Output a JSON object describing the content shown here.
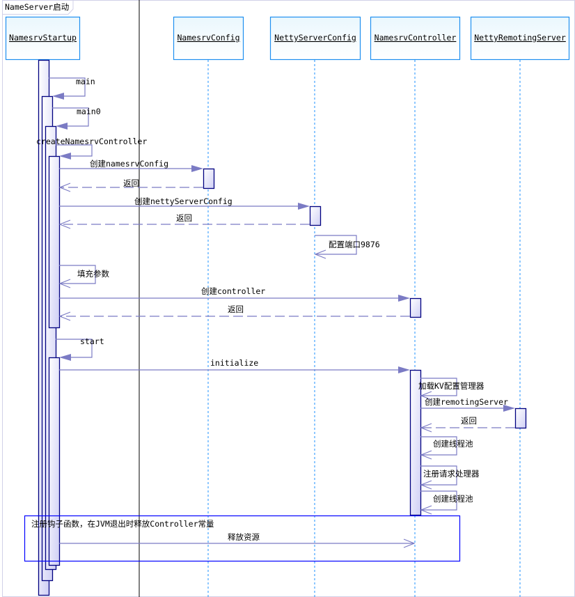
{
  "frame": {
    "title": "NameServer启动"
  },
  "participants": [
    {
      "name": "NamesrvStartup"
    },
    {
      "name": "NamesrvConfig"
    },
    {
      "name": "NettyServerConfig"
    },
    {
      "name": "NamesrvController"
    },
    {
      "name": "NettyRemotingServer"
    }
  ],
  "messages": [
    {
      "label": "main",
      "from": "NamesrvStartup",
      "to": "NamesrvStartup",
      "kind": "call"
    },
    {
      "label": "main0",
      "from": "NamesrvStartup",
      "to": "NamesrvStartup",
      "kind": "call"
    },
    {
      "label": "createNamesrvController",
      "from": "NamesrvStartup",
      "to": "NamesrvStartup",
      "kind": "call"
    },
    {
      "label": "创建namesrvConfig",
      "from": "NamesrvStartup",
      "to": "NamesrvConfig",
      "kind": "call"
    },
    {
      "label": "返回",
      "from": "NamesrvConfig",
      "to": "NamesrvStartup",
      "kind": "return"
    },
    {
      "label": "创建nettyServerConfig",
      "from": "NamesrvStartup",
      "to": "NettyServerConfig",
      "kind": "call"
    },
    {
      "label": "返回",
      "from": "NettyServerConfig",
      "to": "NamesrvStartup",
      "kind": "return"
    },
    {
      "label": "配置端口9876",
      "from": "NettyServerConfig",
      "to": "NettyServerConfig",
      "kind": "self"
    },
    {
      "label": "填充参数",
      "from": "NamesrvStartup",
      "to": "NamesrvStartup",
      "kind": "self"
    },
    {
      "label": "创建controller",
      "from": "NamesrvStartup",
      "to": "NamesrvController",
      "kind": "call"
    },
    {
      "label": "返回",
      "from": "NamesrvController",
      "to": "NamesrvStartup",
      "kind": "return"
    },
    {
      "label": "start",
      "from": "NamesrvStartup",
      "to": "NamesrvStartup",
      "kind": "call"
    },
    {
      "label": "initialize",
      "from": "NamesrvStartup",
      "to": "NamesrvController",
      "kind": "call"
    },
    {
      "label": "加载KV配置管理器",
      "from": "NamesrvController",
      "to": "NamesrvController",
      "kind": "self"
    },
    {
      "label": "创建remotingServer",
      "from": "NamesrvController",
      "to": "NettyRemotingServer",
      "kind": "call"
    },
    {
      "label": "返回",
      "from": "NettyRemotingServer",
      "to": "NamesrvController",
      "kind": "return"
    },
    {
      "label": "创建线程池",
      "from": "NamesrvController",
      "to": "NamesrvController",
      "kind": "self"
    },
    {
      "label": "注册请求处理器",
      "from": "NamesrvController",
      "to": "NamesrvController",
      "kind": "self"
    },
    {
      "label": "创建线程池",
      "from": "NamesrvController",
      "to": "NamesrvController",
      "kind": "self"
    },
    {
      "label": "释放资源",
      "from": "NamesrvStartup",
      "to": "NamesrvController",
      "kind": "async"
    }
  ],
  "note": {
    "text": "注册钩子函数，在JVM退出时释放Controller常量"
  },
  "colors": {
    "message": "#7b7bc4",
    "activation": "#000080",
    "lifeline": "#1e90ff",
    "note_border": "#0000ff"
  }
}
